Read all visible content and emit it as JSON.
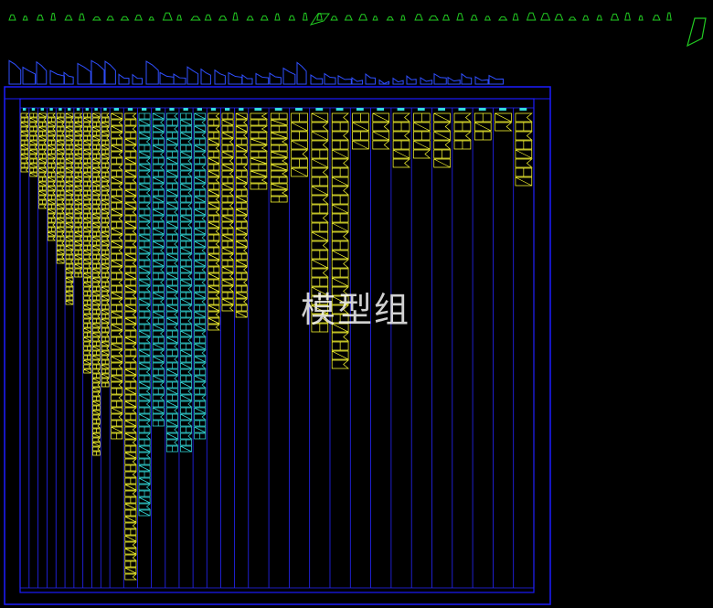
{
  "watermark": "模型组",
  "sheet_title": "",
  "colors": {
    "background": "#000000",
    "frame": "#1c1cff",
    "grid": "#2626ff",
    "cell_primary": "#ffff33",
    "cell_secondary": "#33dddd",
    "header_shapes": "#2f4fff",
    "top_profiles": "#22cc22"
  },
  "drawing": {
    "column_count": 34,
    "top_profile_count": 48,
    "header_shape_count": 36
  }
}
